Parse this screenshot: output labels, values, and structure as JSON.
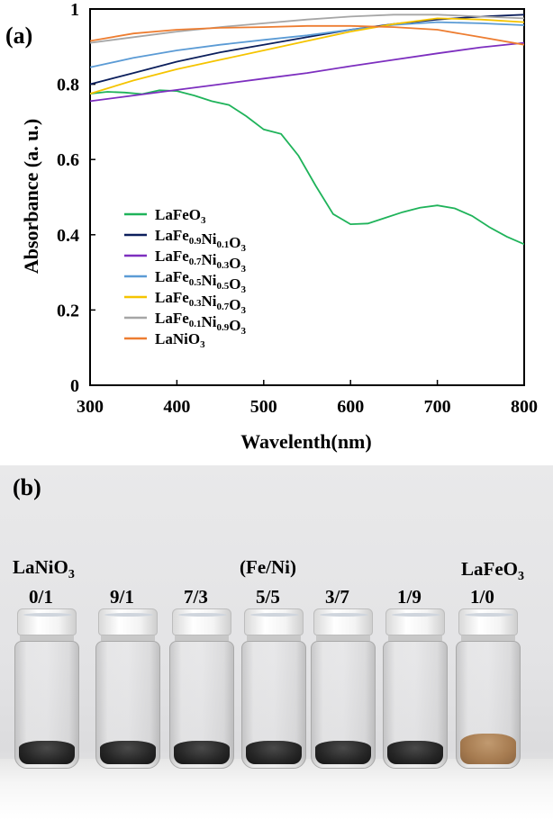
{
  "panel_a": {
    "label": "(a)",
    "chart_data": {
      "type": "line",
      "xlabel": "Wavelenth(nm)",
      "ylabel": "Absorbance (a. u.)",
      "xlim": [
        300,
        800
      ],
      "ylim": [
        0,
        1
      ],
      "xticks": [
        "300",
        "400",
        "500",
        "600",
        "700",
        "800"
      ],
      "yticks": [
        "0",
        "0.2",
        "0.4",
        "0.6",
        "0.8",
        "1"
      ],
      "legend_position": "left-middle",
      "series": [
        {
          "name": "LaFeO3",
          "color": "#1fb35a",
          "x": [
            300,
            320,
            340,
            360,
            380,
            400,
            420,
            440,
            460,
            480,
            500,
            520,
            540,
            560,
            580,
            600,
            620,
            640,
            660,
            680,
            700,
            720,
            740,
            760,
            780,
            800
          ],
          "y": [
            0.775,
            0.78,
            0.778,
            0.774,
            0.784,
            0.782,
            0.77,
            0.755,
            0.745,
            0.715,
            0.68,
            0.668,
            0.61,
            0.53,
            0.455,
            0.428,
            0.43,
            0.445,
            0.46,
            0.472,
            0.478,
            0.47,
            0.45,
            0.42,
            0.395,
            0.375
          ]
        },
        {
          "name": "LaFe0.9Ni0.1O3",
          "color": "#0c1f5c",
          "x": [
            300,
            350,
            400,
            450,
            500,
            550,
            600,
            650,
            700,
            750,
            800
          ],
          "y": [
            0.8,
            0.83,
            0.86,
            0.885,
            0.905,
            0.925,
            0.945,
            0.96,
            0.972,
            0.98,
            0.985
          ]
        },
        {
          "name": "LaFe0.7Ni0.3O3",
          "color": "#7d2fbf",
          "x": [
            300,
            350,
            400,
            450,
            500,
            550,
            600,
            650,
            700,
            750,
            800
          ],
          "y": [
            0.755,
            0.77,
            0.785,
            0.8,
            0.815,
            0.83,
            0.848,
            0.865,
            0.882,
            0.898,
            0.91
          ]
        },
        {
          "name": "LaFe0.5Ni0.5O3",
          "color": "#5b9bd5",
          "x": [
            300,
            350,
            400,
            450,
            500,
            550,
            600,
            650,
            700,
            750,
            800
          ],
          "y": [
            0.845,
            0.87,
            0.89,
            0.905,
            0.918,
            0.93,
            0.945,
            0.958,
            0.965,
            0.962,
            0.957
          ]
        },
        {
          "name": "LaFe0.3Ni0.7O3",
          "color": "#f5c400",
          "x": [
            300,
            350,
            400,
            450,
            500,
            550,
            600,
            650,
            700,
            750,
            800
          ],
          "y": [
            0.775,
            0.81,
            0.84,
            0.865,
            0.89,
            0.915,
            0.94,
            0.96,
            0.975,
            0.972,
            0.965
          ]
        },
        {
          "name": "LaFe0.1Ni0.9O3",
          "color": "#a6a6a6",
          "x": [
            300,
            350,
            400,
            450,
            500,
            550,
            600,
            650,
            700,
            750,
            800
          ],
          "y": [
            0.91,
            0.925,
            0.94,
            0.952,
            0.962,
            0.972,
            0.98,
            0.985,
            0.985,
            0.98,
            0.975
          ]
        },
        {
          "name": "LaNiO3",
          "color": "#ed7d31",
          "x": [
            300,
            350,
            400,
            450,
            500,
            550,
            600,
            650,
            700,
            750,
            800
          ],
          "y": [
            0.915,
            0.935,
            0.945,
            0.95,
            0.952,
            0.955,
            0.955,
            0.952,
            0.945,
            0.925,
            0.905
          ]
        }
      ]
    }
  },
  "panel_b": {
    "label": "(b)",
    "header": "(Fe/Ni)",
    "vials": [
      {
        "name": "LaNiO3",
        "ratio": "0/1",
        "powder": "dark"
      },
      {
        "ratio": "9/1",
        "powder": "dark"
      },
      {
        "ratio": "7/3",
        "powder": "dark"
      },
      {
        "ratio": "5/5",
        "powder": "dark"
      },
      {
        "ratio": "3/7",
        "powder": "dark"
      },
      {
        "ratio": "1/9",
        "powder": "dark"
      },
      {
        "name": "LaFeO3",
        "ratio": "1/0",
        "powder": "brown"
      }
    ]
  }
}
